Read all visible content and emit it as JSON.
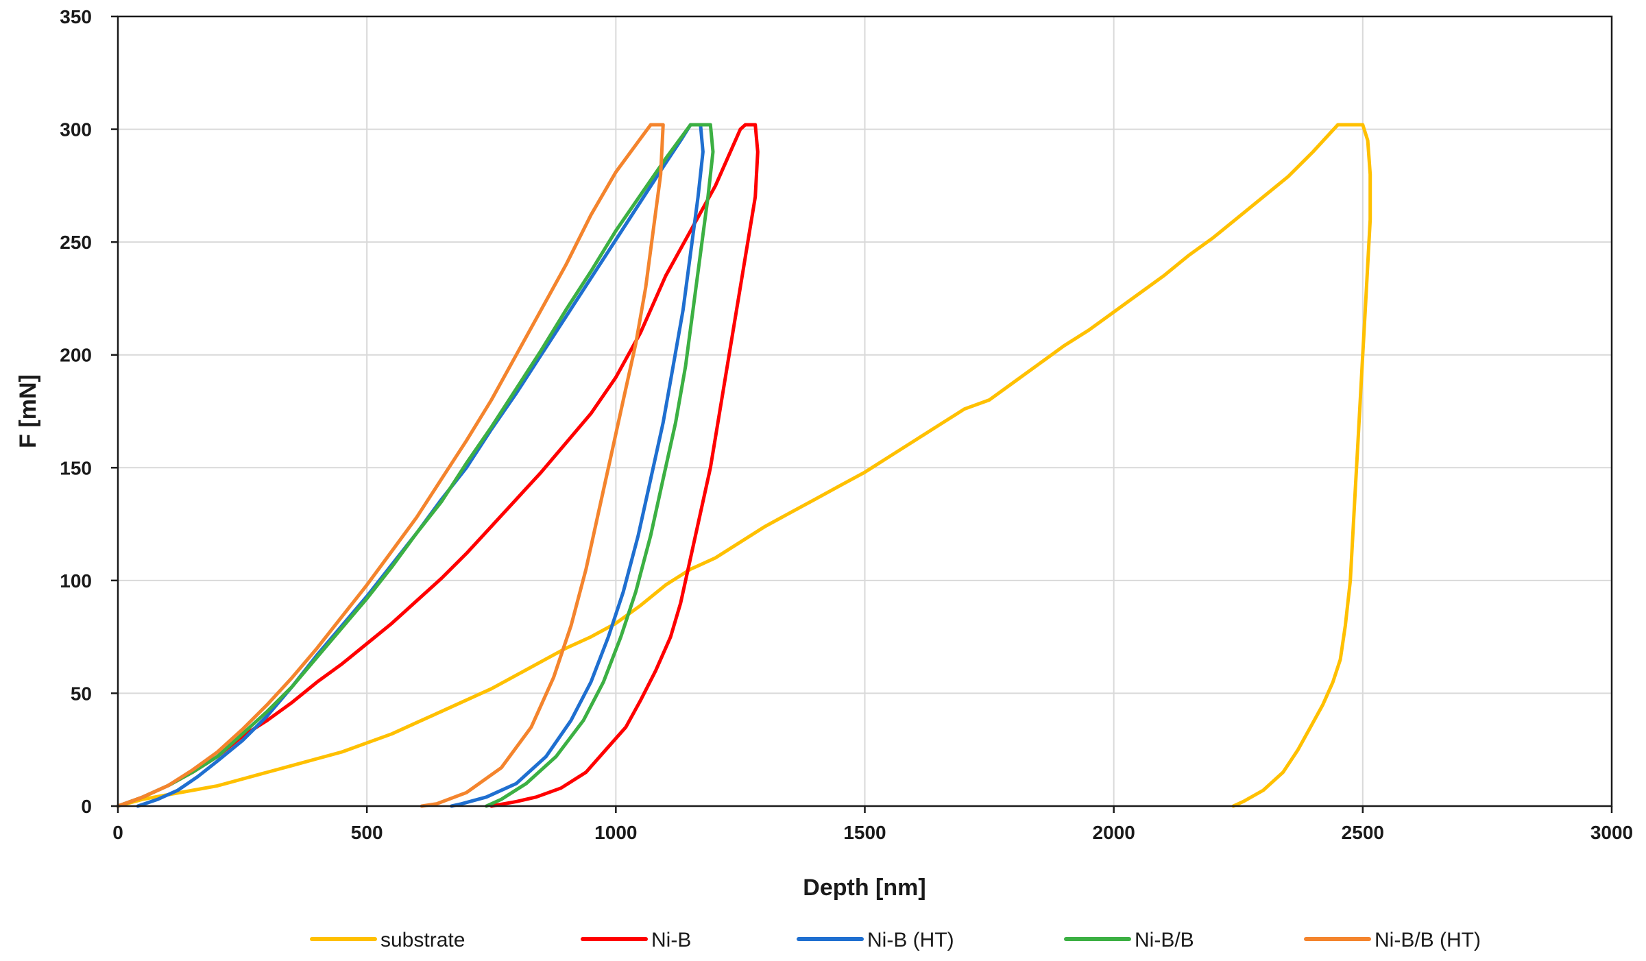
{
  "chart_data": {
    "type": "line",
    "title": "",
    "xlabel": "Depth [nm]",
    "ylabel": "F [mN]",
    "xlim": [
      0,
      3000
    ],
    "ylim": [
      0,
      350
    ],
    "xticks": [
      0,
      500,
      1000,
      1500,
      2000,
      2500,
      3000
    ],
    "yticks": [
      0,
      50,
      100,
      150,
      200,
      250,
      300,
      350
    ],
    "xtick_labels": [
      "0",
      "500",
      "1000",
      "1500",
      "2000",
      "2500",
      "3000"
    ],
    "ytick_labels": [
      "0",
      "50",
      "100",
      "150",
      "200",
      "250",
      "300",
      "350"
    ],
    "grid": true,
    "legend_position": "bottom",
    "series": [
      {
        "name": "substrate",
        "color": "#FFC000",
        "points": [
          [
            0,
            0
          ],
          [
            50,
            3
          ],
          [
            100,
            5
          ],
          [
            150,
            7
          ],
          [
            200,
            9
          ],
          [
            250,
            12
          ],
          [
            300,
            15
          ],
          [
            350,
            18
          ],
          [
            400,
            21
          ],
          [
            450,
            24
          ],
          [
            500,
            28
          ],
          [
            550,
            32
          ],
          [
            600,
            37
          ],
          [
            650,
            42
          ],
          [
            700,
            47
          ],
          [
            750,
            52
          ],
          [
            800,
            58
          ],
          [
            850,
            64
          ],
          [
            900,
            70
          ],
          [
            950,
            75
          ],
          [
            1000,
            81
          ],
          [
            1050,
            89
          ],
          [
            1100,
            98
          ],
          [
            1150,
            105
          ],
          [
            1200,
            110
          ],
          [
            1250,
            117
          ],
          [
            1300,
            124
          ],
          [
            1350,
            130
          ],
          [
            1400,
            136
          ],
          [
            1450,
            142
          ],
          [
            1500,
            148
          ],
          [
            1550,
            155
          ],
          [
            1600,
            162
          ],
          [
            1650,
            169
          ],
          [
            1700,
            176
          ],
          [
            1750,
            180
          ],
          [
            1800,
            188
          ],
          [
            1850,
            196
          ],
          [
            1900,
            204
          ],
          [
            1950,
            211
          ],
          [
            2000,
            219
          ],
          [
            2050,
            227
          ],
          [
            2100,
            235
          ],
          [
            2150,
            244
          ],
          [
            2200,
            252
          ],
          [
            2250,
            261
          ],
          [
            2300,
            270
          ],
          [
            2350,
            279
          ],
          [
            2400,
            290
          ],
          [
            2450,
            302
          ],
          [
            2500,
            302
          ],
          [
            2510,
            295
          ],
          [
            2515,
            280
          ],
          [
            2515,
            260
          ],
          [
            2510,
            240
          ],
          [
            2505,
            220
          ],
          [
            2500,
            200
          ],
          [
            2495,
            180
          ],
          [
            2490,
            160
          ],
          [
            2485,
            140
          ],
          [
            2480,
            120
          ],
          [
            2475,
            100
          ],
          [
            2465,
            80
          ],
          [
            2455,
            65
          ],
          [
            2440,
            55
          ],
          [
            2420,
            45
          ],
          [
            2395,
            35
          ],
          [
            2370,
            25
          ],
          [
            2340,
            15
          ],
          [
            2300,
            7
          ],
          [
            2260,
            2
          ],
          [
            2240,
            0
          ]
        ]
      },
      {
        "name": "Ni-B",
        "color": "#FF0000",
        "points": [
          [
            0,
            0
          ],
          [
            50,
            4
          ],
          [
            100,
            9
          ],
          [
            150,
            15
          ],
          [
            200,
            22
          ],
          [
            250,
            31
          ],
          [
            300,
            38
          ],
          [
            350,
            46
          ],
          [
            400,
            55
          ],
          [
            450,
            63
          ],
          [
            500,
            72
          ],
          [
            550,
            81
          ],
          [
            600,
            91
          ],
          [
            650,
            101
          ],
          [
            700,
            112
          ],
          [
            750,
            124
          ],
          [
            800,
            136
          ],
          [
            850,
            148
          ],
          [
            900,
            161
          ],
          [
            950,
            174
          ],
          [
            1000,
            190
          ],
          [
            1050,
            210
          ],
          [
            1100,
            235
          ],
          [
            1150,
            255
          ],
          [
            1200,
            275
          ],
          [
            1250,
            300
          ],
          [
            1260,
            302
          ],
          [
            1280,
            302
          ],
          [
            1285,
            290
          ],
          [
            1280,
            270
          ],
          [
            1265,
            250
          ],
          [
            1250,
            230
          ],
          [
            1235,
            210
          ],
          [
            1220,
            190
          ],
          [
            1205,
            170
          ],
          [
            1190,
            150
          ],
          [
            1170,
            130
          ],
          [
            1150,
            110
          ],
          [
            1130,
            90
          ],
          [
            1110,
            75
          ],
          [
            1080,
            60
          ],
          [
            1050,
            47
          ],
          [
            1020,
            35
          ],
          [
            980,
            25
          ],
          [
            940,
            15
          ],
          [
            890,
            8
          ],
          [
            840,
            4
          ],
          [
            800,
            2
          ],
          [
            750,
            0
          ]
        ]
      },
      {
        "name": "Ni-B (HT)",
        "color": "#1F6FD0",
        "points": [
          [
            40,
            0
          ],
          [
            80,
            3
          ],
          [
            120,
            7
          ],
          [
            160,
            13
          ],
          [
            200,
            20
          ],
          [
            250,
            29
          ],
          [
            300,
            40
          ],
          [
            350,
            53
          ],
          [
            400,
            67
          ],
          [
            450,
            80
          ],
          [
            500,
            93
          ],
          [
            550,
            107
          ],
          [
            600,
            121
          ],
          [
            650,
            136
          ],
          [
            700,
            150
          ],
          [
            750,
            167
          ],
          [
            800,
            183
          ],
          [
            850,
            200
          ],
          [
            900,
            217
          ],
          [
            950,
            234
          ],
          [
            1000,
            251
          ],
          [
            1050,
            268
          ],
          [
            1100,
            285
          ],
          [
            1130,
            295
          ],
          [
            1150,
            302
          ],
          [
            1170,
            302
          ],
          [
            1175,
            290
          ],
          [
            1165,
            270
          ],
          [
            1150,
            245
          ],
          [
            1135,
            220
          ],
          [
            1115,
            195
          ],
          [
            1095,
            170
          ],
          [
            1070,
            145
          ],
          [
            1045,
            120
          ],
          [
            1015,
            95
          ],
          [
            985,
            75
          ],
          [
            950,
            55
          ],
          [
            910,
            38
          ],
          [
            860,
            22
          ],
          [
            800,
            10
          ],
          [
            740,
            4
          ],
          [
            690,
            1
          ],
          [
            670,
            0
          ]
        ]
      },
      {
        "name": "Ni-B/B",
        "color": "#3CB043",
        "points": [
          [
            0,
            0
          ],
          [
            50,
            4
          ],
          [
            100,
            9
          ],
          [
            150,
            15
          ],
          [
            200,
            22
          ],
          [
            250,
            32
          ],
          [
            300,
            42
          ],
          [
            350,
            53
          ],
          [
            400,
            66
          ],
          [
            450,
            79
          ],
          [
            500,
            92
          ],
          [
            550,
            106
          ],
          [
            600,
            121
          ],
          [
            650,
            135
          ],
          [
            700,
            152
          ],
          [
            750,
            168
          ],
          [
            800,
            185
          ],
          [
            850,
            202
          ],
          [
            900,
            220
          ],
          [
            950,
            237
          ],
          [
            1000,
            255
          ],
          [
            1050,
            271
          ],
          [
            1100,
            287
          ],
          [
            1150,
            302
          ],
          [
            1190,
            302
          ],
          [
            1195,
            290
          ],
          [
            1185,
            270
          ],
          [
            1170,
            245
          ],
          [
            1155,
            220
          ],
          [
            1140,
            195
          ],
          [
            1120,
            170
          ],
          [
            1095,
            145
          ],
          [
            1070,
            120
          ],
          [
            1040,
            95
          ],
          [
            1010,
            75
          ],
          [
            975,
            55
          ],
          [
            935,
            38
          ],
          [
            880,
            22
          ],
          [
            820,
            10
          ],
          [
            770,
            3
          ],
          [
            740,
            0
          ]
        ]
      },
      {
        "name": "Ni-B/B (HT)",
        "color": "#F4842D",
        "points": [
          [
            0,
            0
          ],
          [
            50,
            4
          ],
          [
            100,
            9
          ],
          [
            150,
            16
          ],
          [
            200,
            24
          ],
          [
            250,
            34
          ],
          [
            300,
            45
          ],
          [
            350,
            57
          ],
          [
            400,
            70
          ],
          [
            450,
            84
          ],
          [
            500,
            98
          ],
          [
            550,
            113
          ],
          [
            600,
            128
          ],
          [
            650,
            145
          ],
          [
            700,
            162
          ],
          [
            750,
            180
          ],
          [
            800,
            200
          ],
          [
            850,
            220
          ],
          [
            900,
            240
          ],
          [
            950,
            262
          ],
          [
            1000,
            281
          ],
          [
            1050,
            296
          ],
          [
            1070,
            302
          ],
          [
            1095,
            302
          ],
          [
            1090,
            280
          ],
          [
            1075,
            255
          ],
          [
            1060,
            230
          ],
          [
            1040,
            205
          ],
          [
            1015,
            180
          ],
          [
            990,
            155
          ],
          [
            965,
            130
          ],
          [
            940,
            105
          ],
          [
            910,
            80
          ],
          [
            875,
            57
          ],
          [
            830,
            35
          ],
          [
            770,
            17
          ],
          [
            700,
            6
          ],
          [
            640,
            1
          ],
          [
            610,
            0
          ]
        ]
      }
    ]
  }
}
